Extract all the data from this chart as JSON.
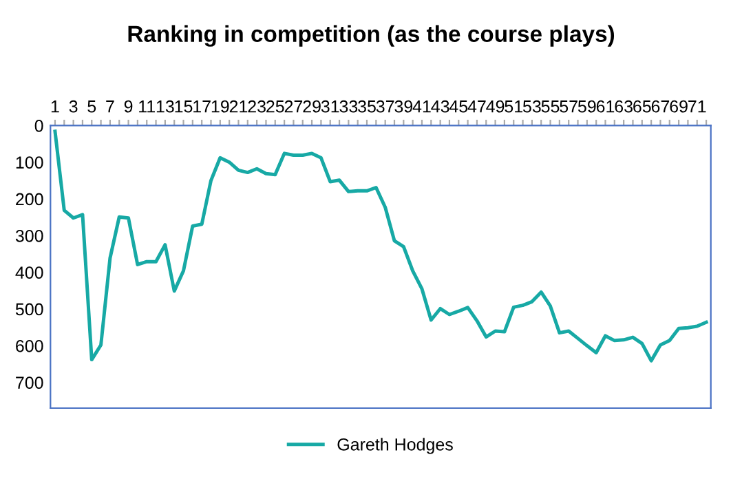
{
  "chart_data": {
    "type": "line",
    "title": "Ranking in competition (as the course plays)",
    "categories": [
      "1",
      null,
      "3",
      null,
      "5",
      null,
      "7",
      null,
      "9",
      null,
      "11",
      null,
      "13",
      null,
      "15",
      null,
      "17",
      null,
      "19",
      null,
      "21",
      null,
      "23",
      null,
      "25",
      null,
      "27",
      null,
      "29",
      null,
      "31",
      null,
      "33",
      null,
      "35",
      null,
      "37",
      null,
      "39",
      null,
      "41",
      null,
      "43",
      null,
      "45",
      null,
      "47",
      null,
      "49",
      null,
      "51",
      null,
      "53",
      null,
      "55",
      null,
      "57",
      null,
      "59",
      null,
      "61",
      null,
      "63",
      null,
      "65",
      null,
      "67",
      null,
      "69",
      null,
      "71",
      null
    ],
    "series": [
      {
        "name": "Gareth Hodges",
        "color": "#17a9a5",
        "values": [
          16,
          231,
          252,
          243,
          638,
          598,
          361,
          249,
          252,
          379,
          371,
          371,
          325,
          451,
          396,
          274,
          269,
          150,
          88,
          100,
          122,
          128,
          118,
          131,
          134,
          76,
          81,
          81,
          76,
          88,
          153,
          149,
          180,
          178,
          178,
          169,
          223,
          314,
          330,
          396,
          445,
          530,
          499,
          515,
          506,
          496,
          532,
          576,
          560,
          562,
          495,
          490,
          480,
          454,
          492,
          565,
          560,
          580,
          600,
          619,
          573,
          586,
          584,
          577,
          594,
          641,
          598,
          586,
          553,
          551,
          547,
          536
        ]
      }
    ],
    "ylim": [
      770,
      0
    ],
    "yticks": [
      0,
      100,
      200,
      300,
      400,
      500,
      600,
      700
    ],
    "grid": false,
    "legend": "bottom",
    "marker": "none",
    "line_style": "solid"
  }
}
